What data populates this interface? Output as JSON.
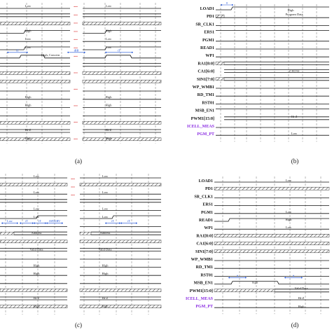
{
  "captions": {
    "a": "(a)",
    "b": "(b)",
    "c": "(c)",
    "d": "(d)"
  },
  "colors": {
    "signal": "#111111",
    "purple": "#8a2be2",
    "annotation": "#1a4fd6",
    "dots": "#d81b1b",
    "grid": "#9a9a9a"
  },
  "signals": [
    "LOAD1",
    "PD1",
    "SR_CLK1",
    "ERS1",
    "PGM1",
    "READ1",
    "WP1",
    "RA1[8:0]",
    "CA1[6:0]",
    "SIN1[7:0]",
    "WP_WMB1",
    "RD_TM1",
    "RST01",
    "MSB_EN1",
    "PWM1[15:0]",
    "ICELL_MEAS",
    "PGM_PT"
  ],
  "purple_signals": [
    "ICELL_MEAS",
    "PGM_PT"
  ],
  "panel_a": {
    "dots": "...",
    "labels": {
      "low": "Low",
      "high": "High",
      "hiz": "Hi-Z",
      "tt": "tT",
      "tbb": "tBB",
      "concern": "High, Concern"
    }
  },
  "panel_b": {
    "labels": {
      "tt": "tt",
      "high": "High",
      "program_data": "Program Data",
      "zero": "Z Hcvss",
      "hiz": "Hi-Z",
      "low": "Low"
    }
  },
  "panel_c": {
    "dots": "...",
    "labels": {
      "low": "Low",
      "high": "High",
      "tt": "tT",
      "twd": "tWD/tRV",
      "address": "Address",
      "valid_data": "Valid Data",
      "hiz": "Hi-Z"
    }
  },
  "panel_d": {
    "labels": {
      "low": "Low",
      "high": "High",
      "tt": "tt",
      "valid_data": "Valid Data",
      "hiz": "Hi-Z",
      "high_z": "high"
    }
  }
}
